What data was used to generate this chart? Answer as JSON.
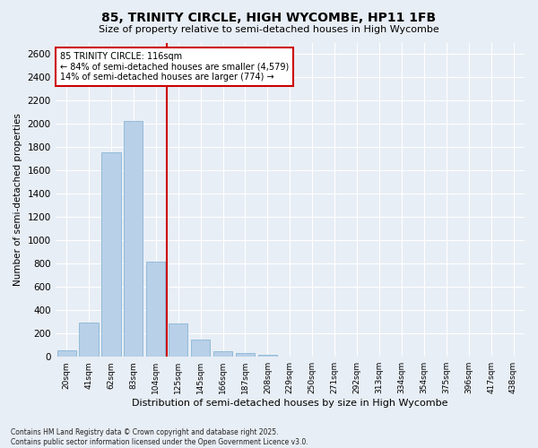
{
  "title": "85, TRINITY CIRCLE, HIGH WYCOMBE, HP11 1FB",
  "subtitle": "Size of property relative to semi-detached houses in High Wycombe",
  "xlabel": "Distribution of semi-detached houses by size in High Wycombe",
  "ylabel": "Number of semi-detached properties",
  "bar_color": "#b8d0e8",
  "bar_edge_color": "#7aaed0",
  "background_color": "#e8eef5",
  "grid_color": "#ffffff",
  "annotation_text_line1": "85 TRINITY CIRCLE: 116sqm",
  "annotation_text_line2": "← 84% of semi-detached houses are smaller (4,579)",
  "annotation_text_line3": "14% of semi-detached houses are larger (774) →",
  "footnote_line1": "Contains HM Land Registry data © Crown copyright and database right 2025.",
  "footnote_line2": "Contains public sector information licensed under the Open Government Licence v3.0.",
  "categories": [
    "20sqm",
    "41sqm",
    "62sqm",
    "83sqm",
    "104sqm",
    "125sqm",
    "145sqm",
    "166sqm",
    "187sqm",
    "208sqm",
    "229sqm",
    "250sqm",
    "271sqm",
    "292sqm",
    "313sqm",
    "334sqm",
    "354sqm",
    "375sqm",
    "396sqm",
    "417sqm",
    "438sqm"
  ],
  "values": [
    55,
    295,
    1755,
    2030,
    820,
    285,
    150,
    50,
    35,
    20,
    0,
    0,
    0,
    0,
    0,
    0,
    0,
    0,
    0,
    0,
    0
  ],
  "ylim": [
    0,
    2700
  ],
  "yticks": [
    0,
    200,
    400,
    600,
    800,
    1000,
    1200,
    1400,
    1600,
    1800,
    2000,
    2200,
    2400,
    2600
  ],
  "vline_x": 4.5,
  "vline_color": "#cc0000",
  "annotation_box_color": "#cc0000"
}
